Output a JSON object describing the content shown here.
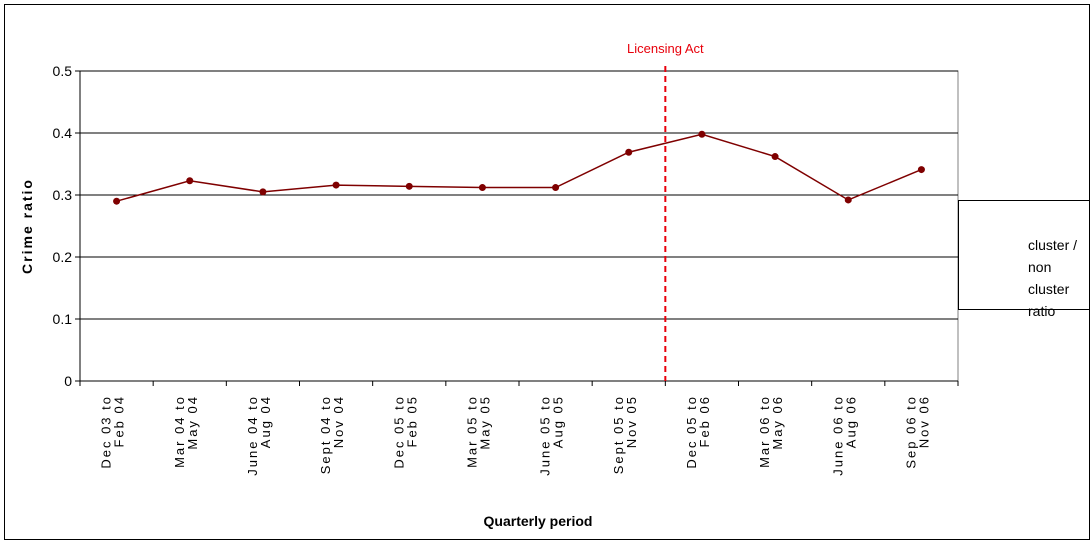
{
  "chart_data": {
    "type": "line",
    "categories": [
      [
        "Dec 03 to",
        "Feb 04"
      ],
      [
        "Mar 04 to",
        "May 04"
      ],
      [
        "June 04 to",
        "Aug 04"
      ],
      [
        "Sept 04 to",
        "Nov 04"
      ],
      [
        "Dec 05 to",
        "Feb 05"
      ],
      [
        "Mar 05 to",
        "May 05"
      ],
      [
        "June 05 to",
        "Aug 05"
      ],
      [
        "Sept 05 to",
        "Nov 05"
      ],
      [
        "Dec 05 to",
        "Feb 06"
      ],
      [
        "Mar 06 to",
        "May 06"
      ],
      [
        "June 06 to",
        "Aug 06"
      ],
      [
        "Sep 06 to",
        "Nov 06"
      ]
    ],
    "series": [
      {
        "name": "cluster / non cluster ratio",
        "values": [
          0.29,
          0.323,
          0.305,
          0.316,
          0.314,
          0.312,
          0.312,
          0.369,
          0.398,
          0.362,
          0.292,
          0.341
        ],
        "color": "#7f0000"
      }
    ],
    "xlabel": "Quarterly period",
    "ylabel": "Crime ratio",
    "ylim": [
      0,
      0.5
    ],
    "yticks": [
      "0",
      "0.1",
      "0.2",
      "0.3",
      "0.4",
      "0.5"
    ],
    "grid": true,
    "legend": "right",
    "annotation": {
      "text": "Licensing Act",
      "x_position": 7.5,
      "color": "#e8000b",
      "style": "dashed-vertical-line"
    }
  }
}
